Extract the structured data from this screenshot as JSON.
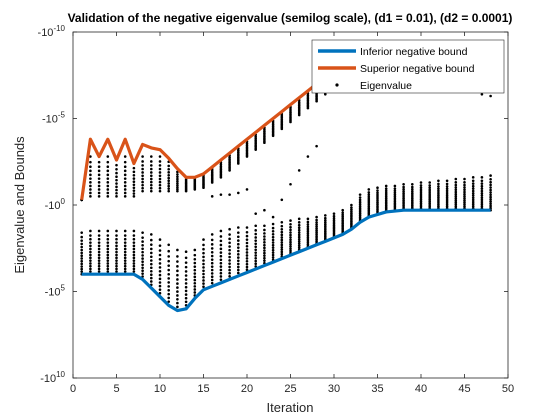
{
  "chart_data": {
    "type": "line",
    "title": "Validation of the negative eigenvalue (semilog scale), (d1 = 0.01), (d2 = 0.0001)",
    "xlabel": "Iteration",
    "ylabel": "Eigenvalue and Bounds",
    "xlim": [
      0,
      50
    ],
    "ylim_log10_abs": [
      -10,
      10
    ],
    "y_scale": "symlog-negative",
    "x_ticks": [
      "0",
      "5",
      "10",
      "15",
      "20",
      "25",
      "30",
      "35",
      "40",
      "45",
      "50"
    ],
    "y_ticks": [
      {
        "label": "-10",
        "exp": "-10"
      },
      {
        "label": "-10",
        "exp": "-5"
      },
      {
        "label": "-10",
        "exp": "0"
      },
      {
        "label": "-10",
        "exp": "5"
      },
      {
        "label": "-10",
        "exp": "10"
      }
    ],
    "grid": false,
    "legend_position": "top-right",
    "legend": [
      "Inferior negative bound",
      "Superior negative bound",
      "Eigenvalue"
    ],
    "colors": {
      "inferior": "#0072bd",
      "superior": "#d95319",
      "eigen": "#000000"
    },
    "x": [
      1,
      2,
      3,
      4,
      5,
      6,
      7,
      8,
      9,
      10,
      11,
      12,
      13,
      14,
      15,
      16,
      17,
      18,
      19,
      20,
      21,
      22,
      23,
      24,
      25,
      26,
      27,
      28,
      29,
      30,
      31,
      32,
      33,
      34,
      35,
      36,
      37,
      38,
      39,
      40,
      41,
      42,
      43,
      44,
      45,
      46,
      47,
      48
    ],
    "series": [
      {
        "name": "Inferior negative bound",
        "log10_abs": [
          4,
          4,
          4,
          4,
          4,
          4,
          4,
          4.3,
          4.8,
          5.3,
          5.8,
          6.1,
          6,
          5.4,
          4.9,
          4.7,
          4.5,
          4.3,
          4.1,
          3.9,
          3.7,
          3.5,
          3.3,
          3.1,
          2.9,
          2.7,
          2.5,
          2.3,
          2.1,
          1.9,
          1.7,
          1.4,
          1.0,
          0.7,
          0.55,
          0.4,
          0.35,
          0.3,
          0.3,
          0.3,
          0.3,
          0.3,
          0.3,
          0.3,
          0.3,
          0.3,
          0.3,
          0.3
        ]
      },
      {
        "name": "Superior negative bound",
        "log10_abs": [
          -0.3,
          -3.8,
          -2.8,
          -3.8,
          -2.6,
          -3.8,
          -2.4,
          -3.5,
          -3.3,
          -3.2,
          -2.7,
          -2.1,
          -1.6,
          -1.6,
          -1.8,
          -2.2,
          -2.6,
          -3.0,
          -3.4,
          -3.8,
          -4.2,
          -4.6,
          -5.0,
          -5.4,
          -5.8,
          -6.2,
          -6.6,
          -7.0,
          -7.4,
          -7.8,
          -8.2,
          -8.6,
          -8.9,
          -9.1,
          -9.2,
          -9.3,
          -9.3,
          -9.3,
          -9.3,
          -9.3,
          -9.3,
          -9.3,
          -9.3,
          -9.3,
          -9.3,
          -9.3,
          -9.3,
          -9.3
        ]
      },
      {
        "name": "Eigenvalue",
        "upper_cluster_top": [
          -0.3,
          -2.8,
          -2.8,
          -2.8,
          -2.6,
          -2.8,
          -2.4,
          -2.8,
          -2.8,
          -2.8,
          -2.5,
          -2.1,
          -1.6,
          -1.6,
          -1.8,
          -2.2,
          -2.6,
          -3.0,
          -3.4,
          -3.8,
          -4.2,
          -4.6,
          -5.0,
          -5.4,
          -5.8,
          -6.2,
          -6.6,
          -7.0,
          -7.4,
          -7.8,
          -8.2,
          -8.6,
          -8.9,
          -9.1,
          -9.2,
          -9.3,
          -9.3,
          -9.3,
          -9.3,
          -9.3,
          -9.3,
          -9.3,
          -9.3,
          -9.3,
          -9.3,
          -9.3,
          -9.3,
          -9.3
        ],
        "upper_cluster_bottom": [
          -0.3,
          -0.5,
          -0.5,
          -0.5,
          -0.5,
          -0.5,
          -0.5,
          -0.8,
          -0.8,
          -0.8,
          -0.8,
          -0.8,
          -0.8,
          -0.9,
          -1.0,
          -1.3,
          -1.6,
          -2.0,
          -2.4,
          -2.8,
          -3.2,
          -3.6,
          -4.0,
          -4.4,
          -4.8,
          -5.2,
          -5.6,
          -6.0,
          -6.4,
          -6.8,
          -7.2,
          -7.6,
          -7.9,
          -8.2,
          -8.1,
          -8.0,
          -7.9,
          -7.8,
          -7.7,
          -7.6,
          -7.5,
          -7.4,
          -7.2,
          -7.0,
          -6.8,
          -6.6,
          -6.4,
          -6.3
        ],
        "lower_cluster_top": [
          1.6,
          1.5,
          1.5,
          1.5,
          1.5,
          1.5,
          1.5,
          1.6,
          1.7,
          2.0,
          2.3,
          2.6,
          2.7,
          2.6,
          2.0,
          1.7,
          1.5,
          1.4,
          1.3,
          1.3,
          1.2,
          1.2,
          1.1,
          1.0,
          0.9,
          0.8,
          0.8,
          0.7,
          0.6,
          0.5,
          0.3,
          0.0,
          -0.6,
          -0.9,
          -1.0,
          -1.1,
          -1.1,
          -1.2,
          -1.2,
          -1.3,
          -1.3,
          -1.4,
          -1.4,
          -1.5,
          -1.5,
          -1.6,
          -1.6,
          -1.7
        ],
        "lower_cluster_bottom": [
          4,
          4,
          4,
          4,
          4,
          4,
          4,
          4.3,
          4.8,
          5.3,
          5.8,
          6.1,
          6,
          5.4,
          4.9,
          4.7,
          4.5,
          4.3,
          4.1,
          3.9,
          3.7,
          3.5,
          3.3,
          3.1,
          2.9,
          2.7,
          2.5,
          2.3,
          2.1,
          1.9,
          1.7,
          1.4,
          1.0,
          0.7,
          0.55,
          0.4,
          0.35,
          0.3,
          0.3,
          0.3,
          0.3,
          0.3,
          0.3,
          0.3,
          0.3,
          0.3,
          0.3,
          0.3
        ],
        "transition_points": [
          [
            16,
            -0.5
          ],
          [
            17,
            -0.6
          ],
          [
            18,
            -0.6
          ],
          [
            19,
            -0.7
          ],
          [
            20,
            -0.9
          ],
          [
            21,
            0.5
          ],
          [
            22,
            0.3
          ],
          [
            23,
            0.7
          ],
          [
            24,
            -0.3
          ],
          [
            25,
            -1.2
          ],
          [
            26,
            -2.0
          ],
          [
            27,
            -2.8
          ],
          [
            28,
            -3.4
          ]
        ]
      }
    ]
  }
}
